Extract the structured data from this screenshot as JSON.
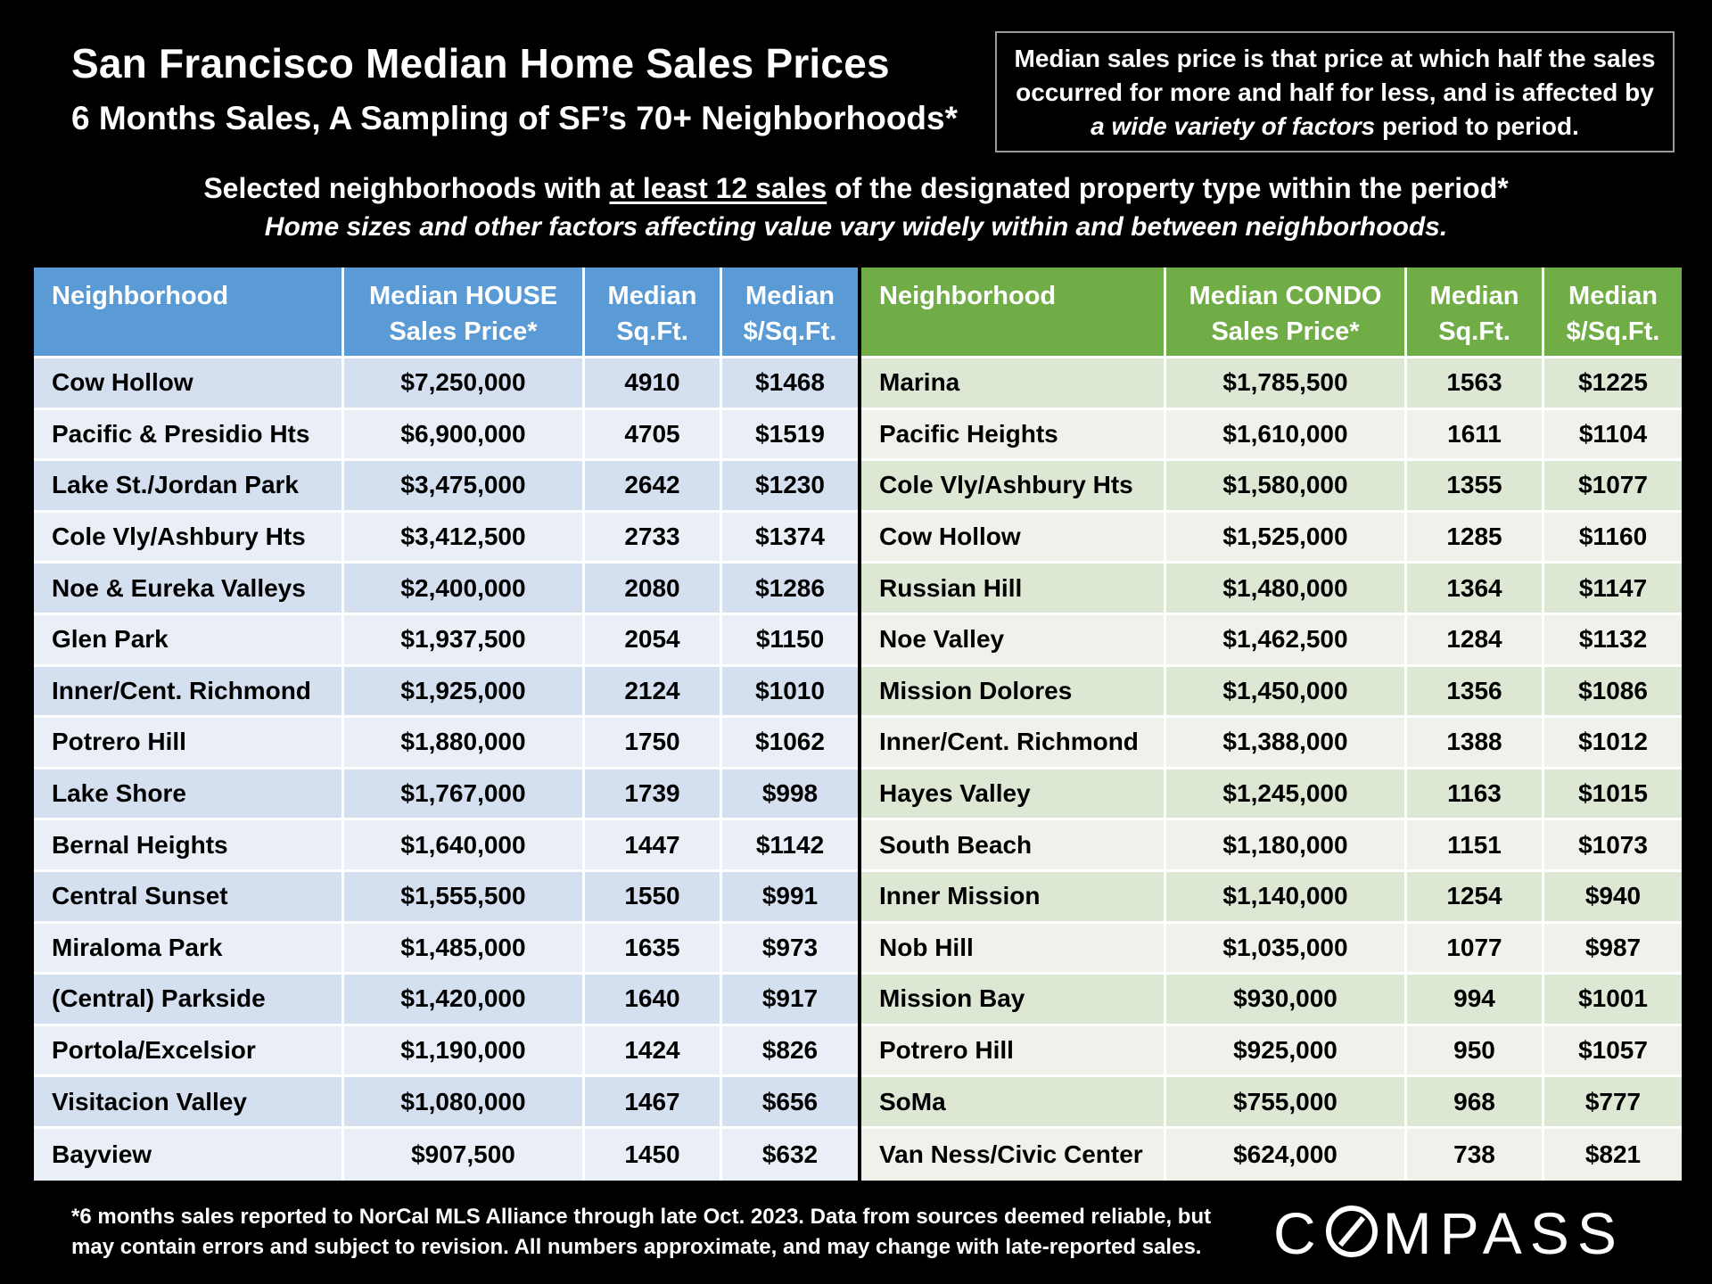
{
  "header": {
    "title": "San Francisco Median Home Sales Prices",
    "subtitle": "6 Months Sales, A Sampling of SF’s 70+ Neighborhoods*",
    "note_line1": "Median sales price is that price at which half the sales",
    "note_line2": "occurred for more and half for less, and is affected by",
    "note_line3_italic": "a wide variety of factors",
    "note_line3_rest": " period to period.",
    "criteria_pre": "Selected neighborhoods with ",
    "criteria_underline": "at least 12 sales",
    "criteria_post": " of the designated property type within the period*",
    "criteria_line2": "Home sizes and other factors affecting value vary widely within and between neighborhoods."
  },
  "chart_data": [
    {
      "type": "table",
      "title": "Median HOUSE Sales",
      "header_color": "#5b9bd5",
      "columns": [
        {
          "l1": "Neighborhood",
          "l2": ""
        },
        {
          "l1": "Median HOUSE",
          "l2": "Sales Price*"
        },
        {
          "l1": "Median",
          "l2": "Sq.Ft."
        },
        {
          "l1": "Median",
          "l2": "$/Sq.Ft."
        }
      ],
      "rows": [
        [
          "Cow Hollow",
          "$7,250,000",
          "4910",
          "$1468"
        ],
        [
          "Pacific & Presidio Hts",
          "$6,900,000",
          "4705",
          "$1519"
        ],
        [
          "Lake St./Jordan Park",
          "$3,475,000",
          "2642",
          "$1230"
        ],
        [
          "Cole Vly/Ashbury Hts",
          "$3,412,500",
          "2733",
          "$1374"
        ],
        [
          "Noe & Eureka Valleys",
          "$2,400,000",
          "2080",
          "$1286"
        ],
        [
          "Glen Park",
          "$1,937,500",
          "2054",
          "$1150"
        ],
        [
          "Inner/Cent. Richmond",
          "$1,925,000",
          "2124",
          "$1010"
        ],
        [
          "Potrero Hill",
          "$1,880,000",
          "1750",
          "$1062"
        ],
        [
          "Lake Shore",
          "$1,767,000",
          "1739",
          "$998"
        ],
        [
          "Bernal Heights",
          "$1,640,000",
          "1447",
          "$1142"
        ],
        [
          "Central Sunset",
          "$1,555,500",
          "1550",
          "$991"
        ],
        [
          "Miraloma Park",
          "$1,485,000",
          "1635",
          "$973"
        ],
        [
          "(Central) Parkside",
          "$1,420,000",
          "1640",
          "$917"
        ],
        [
          "Portola/Excelsior",
          "$1,190,000",
          "1424",
          "$826"
        ],
        [
          "Visitacion Valley",
          "$1,080,000",
          "1467",
          "$656"
        ],
        [
          "Bayview",
          "$907,500",
          "1450",
          "$632"
        ]
      ]
    },
    {
      "type": "table",
      "title": "Median CONDO Sales",
      "header_color": "#70ad47",
      "columns": [
        {
          "l1": "Neighborhood",
          "l2": ""
        },
        {
          "l1": "Median CONDO",
          "l2": "Sales Price*"
        },
        {
          "l1": "Median",
          "l2": "Sq.Ft."
        },
        {
          "l1": "Median",
          "l2": "$/Sq.Ft."
        }
      ],
      "rows": [
        [
          "Marina",
          "$1,785,500",
          "1563",
          "$1225"
        ],
        [
          "Pacific Heights",
          "$1,610,000",
          "1611",
          "$1104"
        ],
        [
          "Cole Vly/Ashbury Hts",
          "$1,580,000",
          "1355",
          "$1077"
        ],
        [
          "Cow Hollow",
          "$1,525,000",
          "1285",
          "$1160"
        ],
        [
          "Russian Hill",
          "$1,480,000",
          "1364",
          "$1147"
        ],
        [
          "Noe Valley",
          "$1,462,500",
          "1284",
          "$1132"
        ],
        [
          "Mission Dolores",
          "$1,450,000",
          "1356",
          "$1086"
        ],
        [
          "Inner/Cent. Richmond",
          "$1,388,000",
          "1388",
          "$1012"
        ],
        [
          "Hayes Valley",
          "$1,245,000",
          "1163",
          "$1015"
        ],
        [
          "South Beach",
          "$1,180,000",
          "1151",
          "$1073"
        ],
        [
          "Inner Mission",
          "$1,140,000",
          "1254",
          "$940"
        ],
        [
          "Nob Hill",
          "$1,035,000",
          "1077",
          "$987"
        ],
        [
          "Mission Bay",
          "$930,000",
          "994",
          "$1001"
        ],
        [
          "Potrero Hill",
          "$925,000",
          "950",
          "$1057"
        ],
        [
          "SoMa",
          "$755,000",
          "968",
          "$777"
        ],
        [
          "Van Ness/Civic Center",
          "$624,000",
          "738",
          "$821"
        ]
      ]
    }
  ],
  "footer": {
    "line1": "*6 months sales reported to NorCal MLS Alliance through late Oct. 2023. Data from sources deemed reliable, but",
    "line2": "may contain errors and subject to revision. All numbers approximate, and may change with late-reported sales.",
    "logo_text": "COMPASS"
  }
}
